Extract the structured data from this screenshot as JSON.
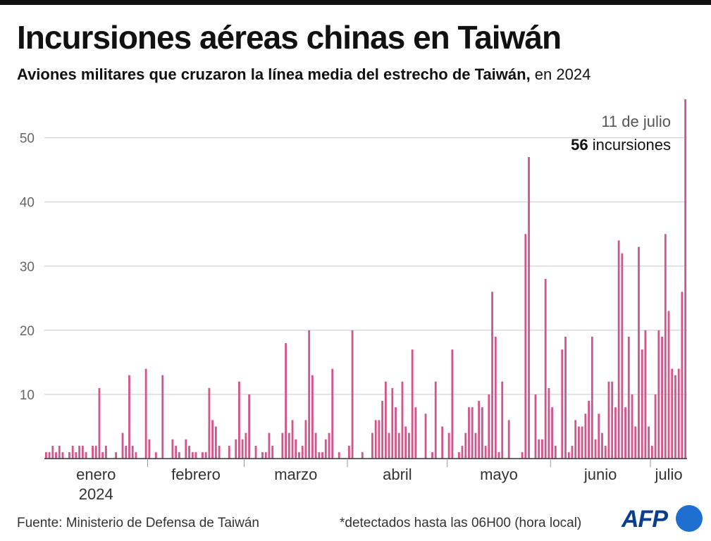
{
  "title": "Incursiones aéreas chinas en Taiwán",
  "subtitle_bold": "Aviones militares que cruzaron la línea media del estrecho de Taiwán,",
  "subtitle_rest": " en 2024",
  "annotation": {
    "date": "11 de julio",
    "value": "56",
    "unit": " incursiones"
  },
  "source": "Fuente:  Ministerio de Defensa de Taiwán",
  "note": "*detectados hasta las 06H00 (hora local)",
  "logo": "AFP",
  "colors": {
    "bar": "#d2568c",
    "grid": "#c8c8c8",
    "axis": "#333333",
    "tick_text": "#666666",
    "month_text": "#333333"
  },
  "chart_data": {
    "type": "bar",
    "x_start_date": "2024-01-01",
    "x_end_date": "2024-07-11",
    "ylim": [
      0,
      56
    ],
    "yticks": [
      10,
      20,
      30,
      40,
      50
    ],
    "grid": true,
    "month_labels": [
      {
        "label": "enero",
        "sublabel": "2024"
      },
      {
        "label": "febrero"
      },
      {
        "label": "marzo"
      },
      {
        "label": "abril"
      },
      {
        "label": "mayo"
      },
      {
        "label": "junio"
      },
      {
        "label": "julio"
      }
    ],
    "values": [
      1,
      1,
      2,
      1,
      2,
      1,
      0,
      1,
      2,
      1,
      2,
      2,
      1,
      0,
      2,
      2,
      11,
      1,
      2,
      0,
      0,
      1,
      0,
      4,
      2,
      13,
      2,
      1,
      0,
      0,
      14,
      3,
      0,
      1,
      0,
      13,
      0,
      0,
      3,
      2,
      1,
      0,
      3,
      2,
      1,
      1,
      0,
      1,
      1,
      11,
      6,
      5,
      2,
      0,
      0,
      2,
      0,
      3,
      12,
      3,
      4,
      10,
      0,
      2,
      0,
      1,
      1,
      4,
      2,
      0,
      0,
      4,
      18,
      4,
      6,
      3,
      1,
      2,
      6,
      20,
      13,
      4,
      1,
      1,
      3,
      4,
      14,
      0,
      1,
      0,
      0,
      2,
      20,
      0,
      0,
      1,
      0,
      0,
      4,
      6,
      6,
      9,
      12,
      4,
      11,
      8,
      4,
      12,
      5,
      4,
      17,
      8,
      0,
      0,
      7,
      0,
      1,
      12,
      0,
      5,
      0,
      4,
      17,
      0,
      1,
      2,
      4,
      8,
      8,
      4,
      9,
      8,
      2,
      10,
      26,
      19,
      1,
      12,
      0,
      6,
      0,
      0,
      0,
      1,
      35,
      47,
      0,
      10,
      3,
      3,
      28,
      11,
      8,
      2,
      0,
      17,
      19,
      1,
      2,
      6,
      5,
      5,
      7,
      9,
      19,
      3,
      7,
      4,
      2,
      12,
      12,
      8,
      34,
      32,
      8,
      19,
      10,
      5,
      33,
      17,
      20,
      5,
      2,
      10,
      20,
      19,
      35,
      23,
      14,
      13,
      14,
      26,
      56
    ]
  }
}
